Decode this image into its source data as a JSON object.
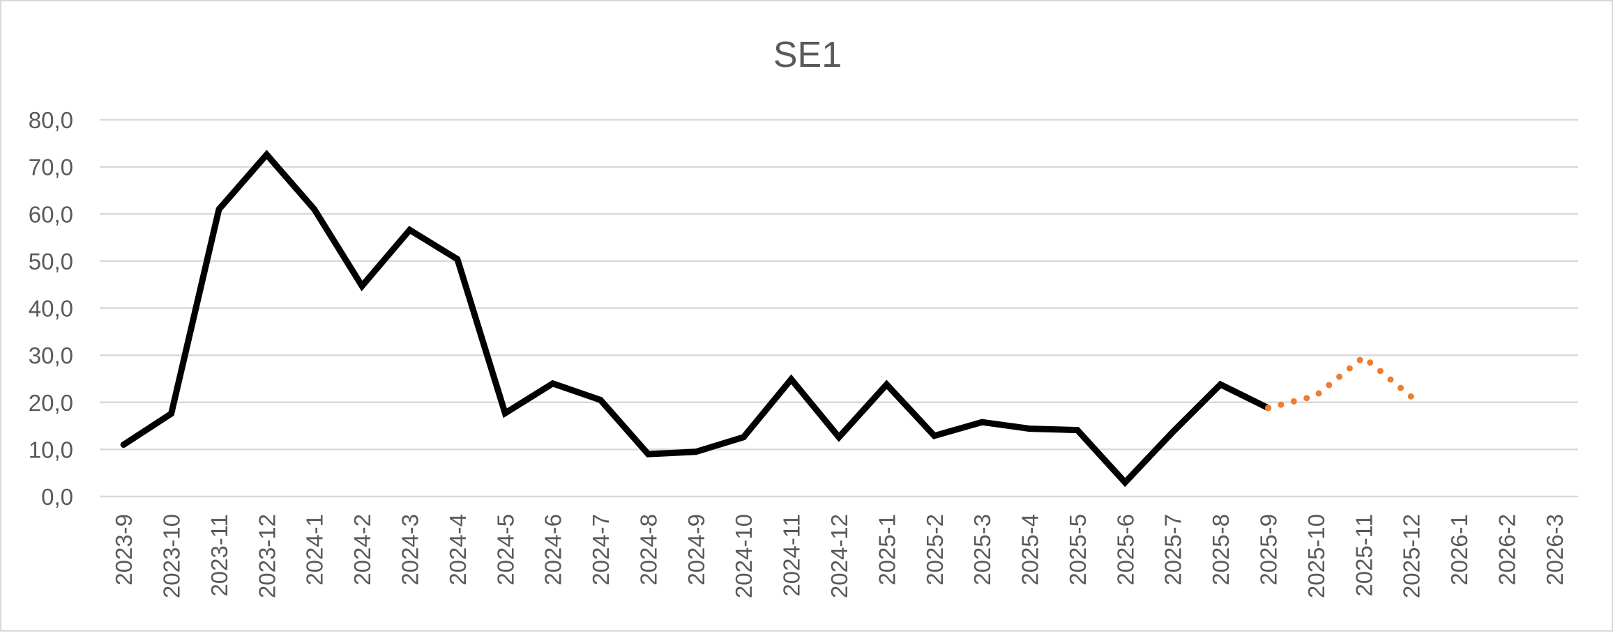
{
  "chart_data": {
    "type": "line",
    "title": "SE1",
    "xlabel": "",
    "ylabel": "",
    "ylim": [
      0,
      80
    ],
    "y_ticks": [
      "0,0",
      "10,0",
      "20,0",
      "30,0",
      "40,0",
      "50,0",
      "60,0",
      "70,0",
      "80,0"
    ],
    "grid": true,
    "legend": "none",
    "categories": [
      "2023-9",
      "2023-10",
      "2023-11",
      "2023-12",
      "2024-1",
      "2024-2",
      "2024-3",
      "2024-4",
      "2024-5",
      "2024-6",
      "2024-7",
      "2024-8",
      "2024-9",
      "2024-10",
      "2024-11",
      "2024-12",
      "2025-1",
      "2025-2",
      "2025-3",
      "2025-4",
      "2025-5",
      "2025-6",
      "2025-7",
      "2025-8",
      "2025-9",
      "2025-10",
      "2025-11",
      "2025-12",
      "2026-1",
      "2026-2",
      "2026-3"
    ],
    "series": [
      {
        "style": "solid",
        "color": "#000000",
        "values": [
          11.0,
          17.6,
          61.0,
          72.6,
          61.0,
          44.7,
          56.6,
          50.4,
          17.7,
          24.0,
          20.5,
          9.0,
          9.5,
          12.6,
          24.9,
          12.6,
          23.8,
          12.9,
          15.8,
          14.4,
          14.1,
          3.0,
          13.7,
          23.8,
          18.8,
          null,
          null,
          null,
          null,
          null,
          null
        ]
      },
      {
        "style": "dotted",
        "color": "#ed7d31",
        "values": [
          null,
          null,
          null,
          null,
          null,
          null,
          null,
          null,
          null,
          null,
          null,
          null,
          null,
          null,
          null,
          null,
          null,
          null,
          null,
          null,
          null,
          null,
          null,
          null,
          18.8,
          21.4,
          29.6,
          21.2,
          null,
          null,
          null
        ]
      }
    ]
  }
}
